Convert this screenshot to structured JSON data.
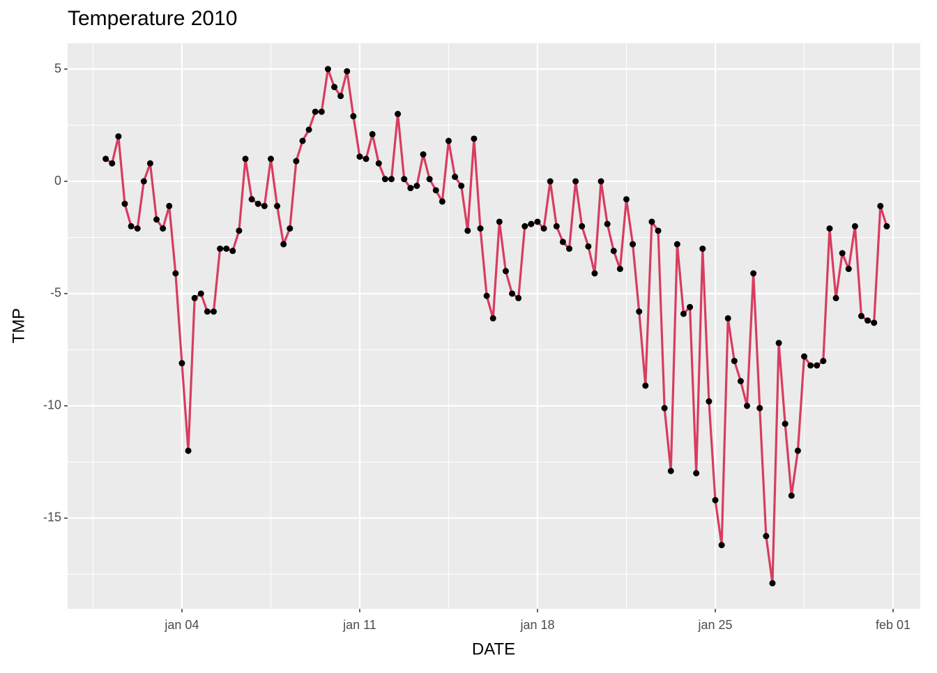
{
  "chart_data": {
    "type": "line",
    "title": "Temperature 2010",
    "x_label": "DATE",
    "y_label": "TMP",
    "x": [
      1,
      1.25,
      1.5,
      1.75,
      2,
      2.25,
      2.5,
      2.75,
      3,
      3.25,
      3.5,
      3.75,
      4,
      4.25,
      4.5,
      4.75,
      5,
      5.25,
      5.5,
      5.75,
      6,
      6.25,
      6.5,
      6.75,
      7,
      7.25,
      7.5,
      7.75,
      8,
      8.25,
      8.5,
      8.75,
      9,
      9.25,
      9.5,
      9.75,
      10,
      10.25,
      10.5,
      10.75,
      11,
      11.25,
      11.5,
      11.75,
      12,
      12.25,
      12.5,
      12.75,
      13,
      13.25,
      13.5,
      13.75,
      14,
      14.25,
      14.5,
      14.75,
      15,
      15.25,
      15.5,
      15.75,
      16,
      16.25,
      16.5,
      16.75,
      17,
      17.25,
      17.5,
      17.75,
      18,
      18.25,
      18.5,
      18.75,
      19,
      19.25,
      19.5,
      19.75,
      20,
      20.25,
      20.5,
      20.75,
      21,
      21.25,
      21.5,
      21.75,
      22,
      22.25,
      22.5,
      22.75,
      23,
      23.25,
      23.5,
      23.75,
      24,
      24.25,
      24.5,
      24.75,
      25,
      25.25,
      25.5,
      25.75,
      26,
      26.25,
      26.5,
      26.75,
      27,
      27.25,
      27.5,
      27.75,
      28,
      28.25,
      28.5,
      28.75,
      29,
      29.25,
      29.5,
      29.75,
      30,
      30.25,
      30.5,
      30.75,
      31,
      31.25,
      31.5,
      31.75
    ],
    "values": [
      1,
      0.8,
      2,
      -1,
      -2,
      -2.1,
      0,
      0.8,
      -1.7,
      -2.1,
      -1.1,
      -4.1,
      -8.1,
      -12,
      -5.2,
      -5,
      -5.8,
      -5.8,
      -3,
      -3,
      -3.1,
      -2.2,
      1,
      -0.8,
      -1,
      -1.1,
      1,
      -1.1,
      -2.8,
      -2.1,
      0.9,
      1.8,
      2.3,
      3.1,
      3.1,
      5,
      4.2,
      3.8,
      4.9,
      2.9,
      1.1,
      1,
      2.1,
      0.8,
      0.1,
      0.1,
      3,
      0.1,
      -0.3,
      -0.2,
      1.2,
      0.1,
      -0.4,
      -0.9,
      1.8,
      0.2,
      -0.2,
      -2.2,
      1.9,
      -2.1,
      -5.1,
      -6.1,
      -1.8,
      -4,
      -5,
      -5.2,
      -2,
      -1.9,
      -1.8,
      -2.1,
      0,
      -2,
      -2.7,
      -3,
      0,
      -2,
      -2.9,
      -4.1,
      0,
      -1.9,
      -3.1,
      -3.9,
      -0.8,
      -2.8,
      -5.8,
      -9.1,
      -1.8,
      -2.2,
      -10.1,
      -12.9,
      -2.8,
      -5.9,
      -5.6,
      -13,
      -3,
      -9.8,
      -14.2,
      -16.2,
      -6.1,
      -8,
      -8.9,
      -10,
      -4.1,
      -10.1,
      -15.8,
      -17.9,
      -7.2,
      -10.8,
      -14,
      -12,
      -7.8,
      -8.2,
      -8.2,
      -8,
      -2.1,
      -5.2,
      -3.2,
      -3.9,
      -2,
      -6,
      -6.2,
      -6.3,
      -1.1,
      -2
    ],
    "line_color": "#d83c5f",
    "point_color": "#000000",
    "xlim": [
      -0.5,
      33.07
    ],
    "xticks": [
      {
        "value": 4,
        "label": "jan 04"
      },
      {
        "value": 11,
        "label": "jan 11"
      },
      {
        "value": 18,
        "label": "jan 18"
      },
      {
        "value": 25,
        "label": "jan 25"
      },
      {
        "value": 32,
        "label": "feb 01"
      }
    ],
    "ylim": [
      -19.04,
      6.15
    ],
    "yticks": [
      -15,
      -10,
      -5,
      0,
      5
    ],
    "grid": true
  }
}
